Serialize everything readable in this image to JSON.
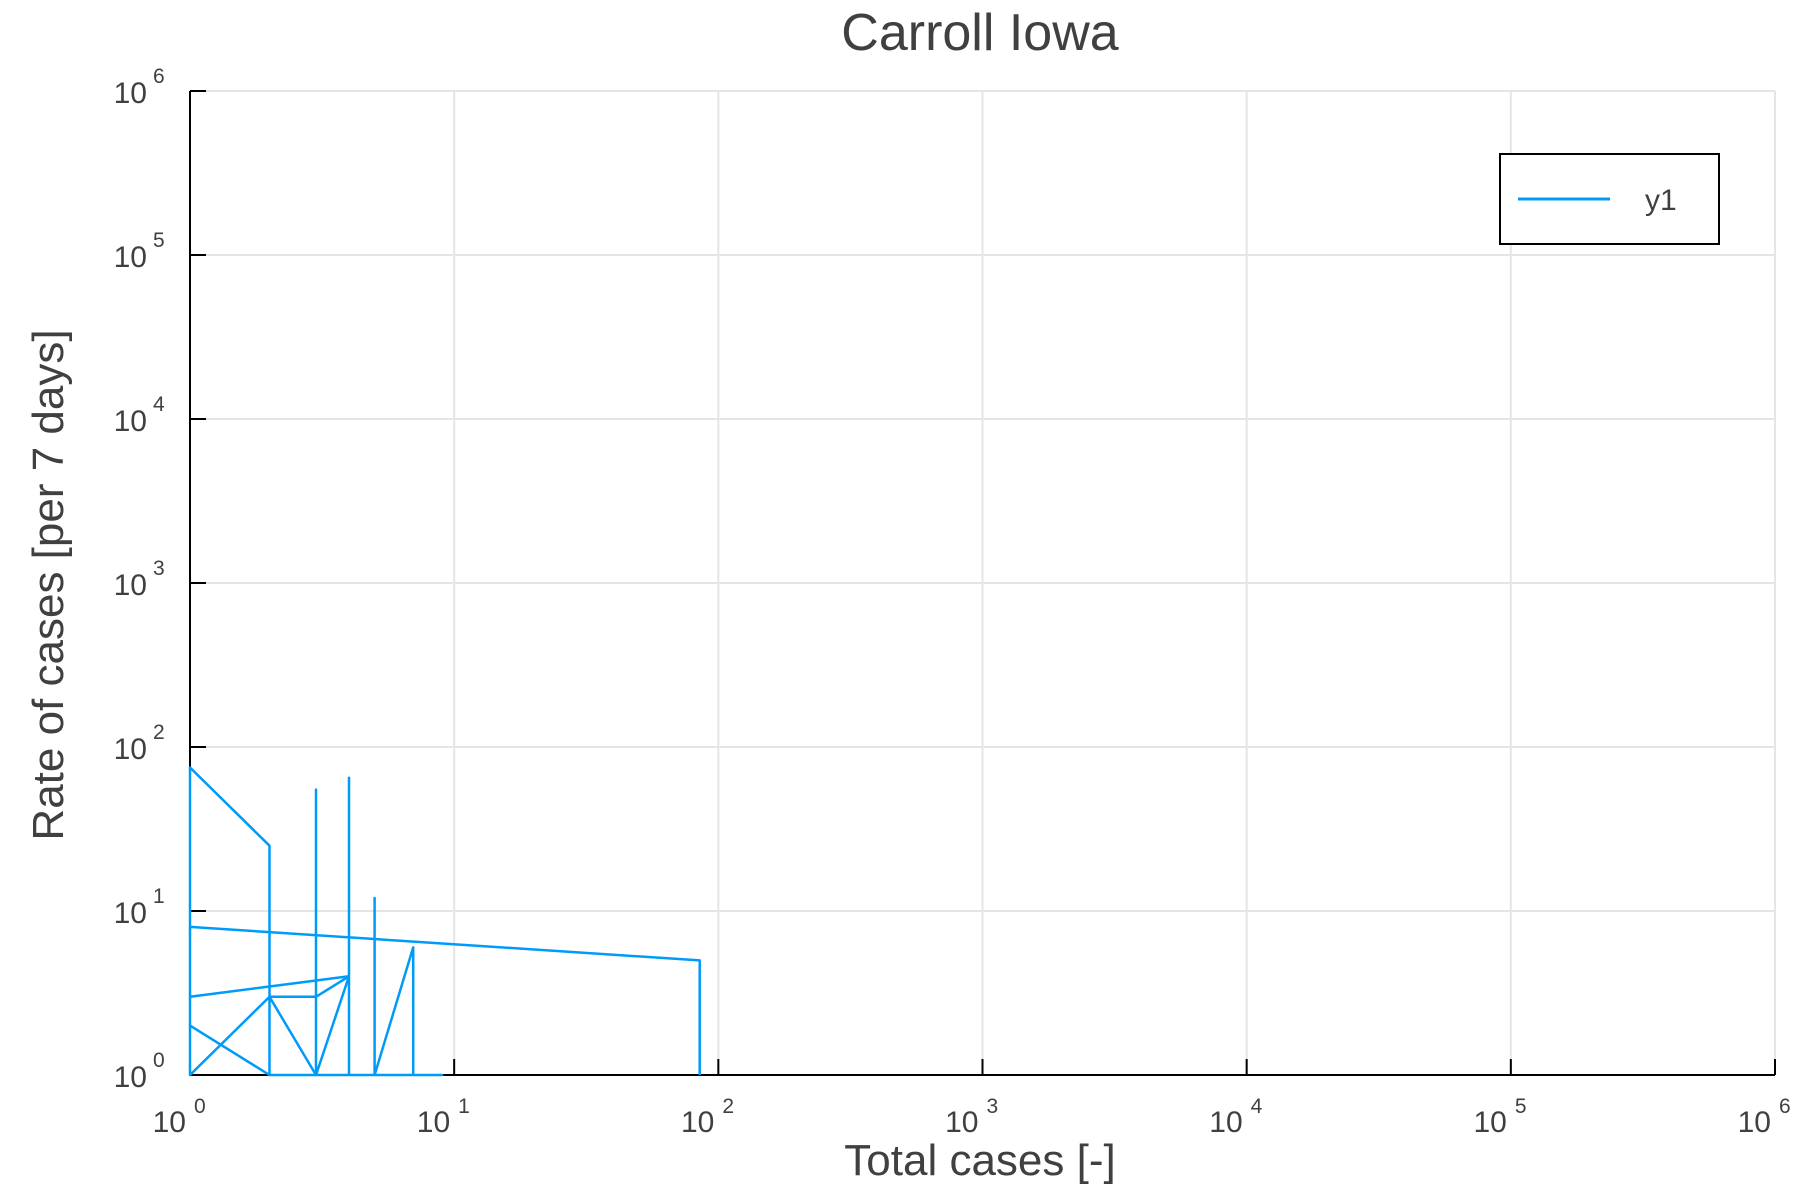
{
  "chart_data": {
    "type": "line",
    "title": "Carroll Iowa",
    "xlabel": "Total cases [-]",
    "ylabel": "Rate of cases [per 7 days]",
    "x_scale": "log",
    "y_scale": "log",
    "xlim": [
      1,
      1000000
    ],
    "ylim": [
      1,
      1000000
    ],
    "grid": true,
    "legend": "top-right",
    "x_ticks": [
      {
        "base": "10",
        "exp": "0",
        "value": 1
      },
      {
        "base": "10",
        "exp": "1",
        "value": 10
      },
      {
        "base": "10",
        "exp": "2",
        "value": 100
      },
      {
        "base": "10",
        "exp": "3",
        "value": 1000
      },
      {
        "base": "10",
        "exp": "4",
        "value": 10000
      },
      {
        "base": "10",
        "exp": "5",
        "value": 100000
      },
      {
        "base": "10",
        "exp": "6",
        "value": 1000000
      }
    ],
    "y_ticks": [
      {
        "base": "10",
        "exp": "0",
        "value": 1
      },
      {
        "base": "10",
        "exp": "1",
        "value": 10
      },
      {
        "base": "10",
        "exp": "2",
        "value": 100
      },
      {
        "base": "10",
        "exp": "3",
        "value": 1000
      },
      {
        "base": "10",
        "exp": "4",
        "value": 10000
      },
      {
        "base": "10",
        "exp": "5",
        "value": 100000
      },
      {
        "base": "10",
        "exp": "6",
        "value": 1000000
      }
    ],
    "series": [
      {
        "name": "y1",
        "color": "#009af9",
        "x": [
          1,
          1,
          1,
          2,
          2,
          2,
          2,
          3,
          3,
          3,
          3,
          3,
          4,
          4,
          4,
          4,
          4,
          4,
          5,
          5,
          5,
          5,
          5,
          7,
          7,
          7,
          9,
          5,
          4,
          3,
          2,
          1,
          1,
          4,
          4,
          3,
          2,
          1,
          1,
          85,
          85
        ],
        "y": [
          1,
          10,
          75,
          25,
          1,
          15,
          3,
          1,
          50,
          55,
          30,
          1,
          4,
          65,
          25,
          1,
          13,
          1,
          1,
          12,
          6,
          1,
          1,
          6,
          1,
          1,
          1,
          1,
          1,
          1,
          1,
          2,
          3,
          4,
          4,
          3,
          3,
          1,
          8,
          5,
          1
        ]
      }
    ]
  }
}
